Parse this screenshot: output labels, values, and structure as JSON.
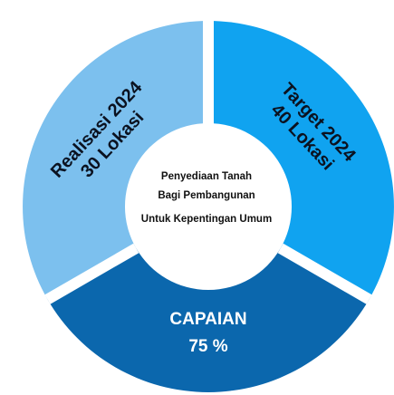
{
  "colors": {
    "realisasi": "#7cc0ee",
    "target": "#10a3f0",
    "capaian": "#0b67ad",
    "gap": "#ffffff",
    "center_fill": "#ffffff"
  },
  "segments": {
    "realisasi": {
      "line1": "Realisasi 2024",
      "line2": "30 Lokasi"
    },
    "target": {
      "line1": "Target 2024",
      "line2": "40 Lokasi"
    },
    "capaian": {
      "line1": "CAPAIAN",
      "line2": "75 %"
    }
  },
  "center": {
    "line1": "Penyediaan Tanah",
    "line2": "Bagi Pembangunan",
    "line3": "Untuk Kepentingan Umum"
  }
}
